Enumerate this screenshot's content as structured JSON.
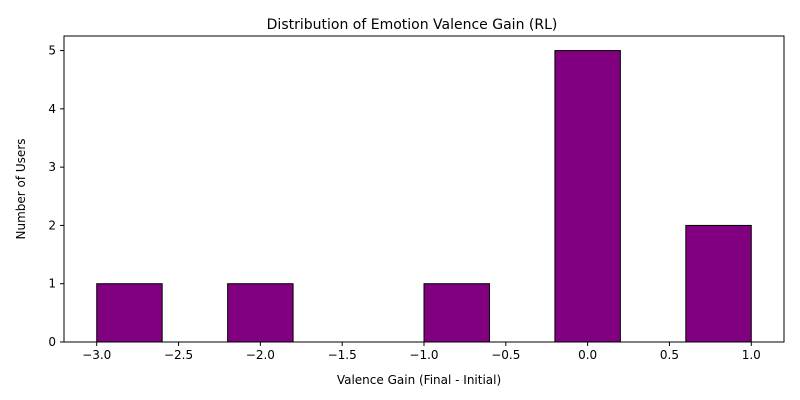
{
  "chart_data": {
    "type": "bar",
    "title": "Distribution of Emotion Valence Gain (RL)",
    "xlabel": "Valence Gain (Final - Initial)",
    "ylabel": "Number of Users",
    "bins": [
      {
        "start": -3.0,
        "end": -2.6,
        "count": 1
      },
      {
        "start": -2.6,
        "end": -2.2,
        "count": 0
      },
      {
        "start": -2.2,
        "end": -1.8,
        "count": 1
      },
      {
        "start": -1.8,
        "end": -1.4,
        "count": 0
      },
      {
        "start": -1.4,
        "end": -1.0,
        "count": 0
      },
      {
        "start": -1.0,
        "end": -0.6,
        "count": 1
      },
      {
        "start": -0.6,
        "end": -0.2,
        "count": 0
      },
      {
        "start": -0.2,
        "end": 0.2,
        "count": 5
      },
      {
        "start": 0.2,
        "end": 0.6,
        "count": 0
      },
      {
        "start": 0.6,
        "end": 1.0,
        "count": 2
      }
    ],
    "xlim": [
      -3.2,
      1.2
    ],
    "ylim": [
      0,
      5.25
    ],
    "xticks": [
      {
        "value": -3.0,
        "label": "−3.0"
      },
      {
        "value": -2.5,
        "label": "−2.5"
      },
      {
        "value": -2.0,
        "label": "−2.0"
      },
      {
        "value": -1.5,
        "label": "−1.5"
      },
      {
        "value": -1.0,
        "label": "−1.0"
      },
      {
        "value": -0.5,
        "label": "−0.5"
      },
      {
        "value": 0.0,
        "label": "0.0"
      },
      {
        "value": 0.5,
        "label": "0.5"
      },
      {
        "value": 1.0,
        "label": "1.0"
      }
    ],
    "yticks": [
      {
        "value": 0,
        "label": "0"
      },
      {
        "value": 1,
        "label": "1"
      },
      {
        "value": 2,
        "label": "2"
      },
      {
        "value": 3,
        "label": "3"
      },
      {
        "value": 4,
        "label": "4"
      },
      {
        "value": 5,
        "label": "5"
      }
    ],
    "bar_color": "#800080",
    "edge_color": "#000000",
    "grid": false,
    "legend": "none"
  }
}
